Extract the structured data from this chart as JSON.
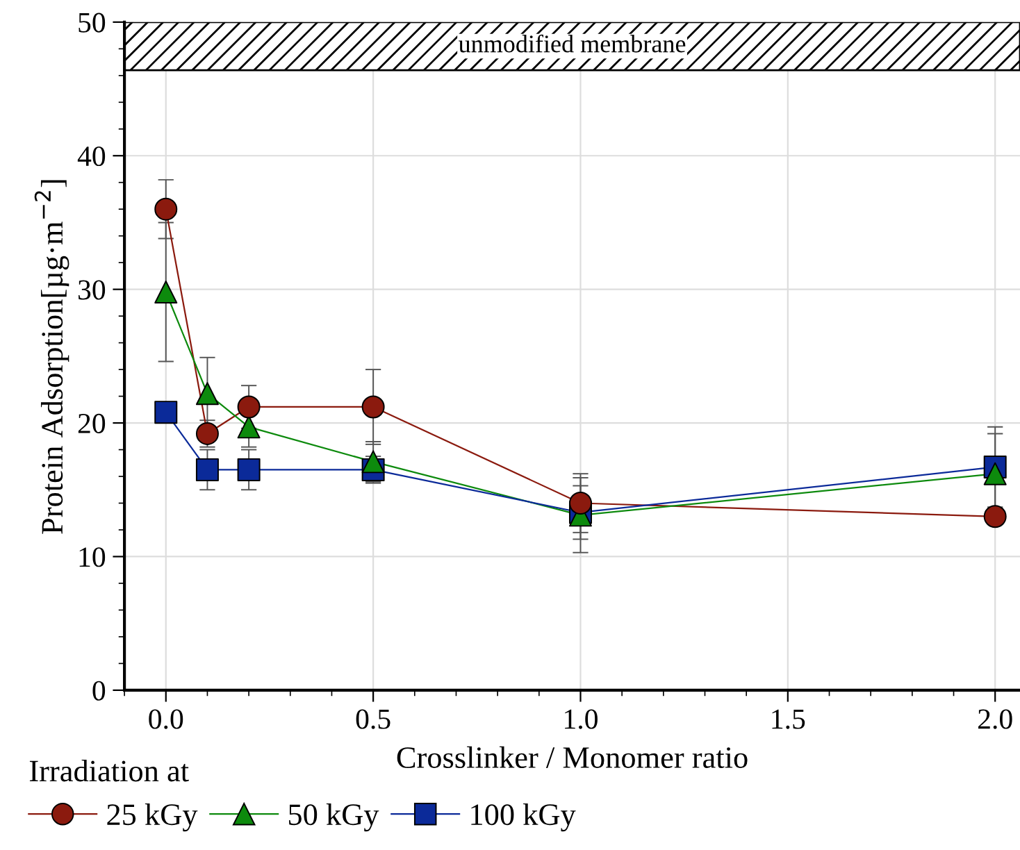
{
  "chart_data": {
    "type": "line",
    "xlabel": "Crosslinker / Monomer ratio",
    "ylabel": "Protein Adsorption[µg·m$^{−2}$]",
    "legend_title": "Irradiation at",
    "legend": "bottom",
    "grid": true,
    "x": [
      0.0,
      0.1,
      0.2,
      0.5,
      1.0,
      2.0
    ],
    "series": [
      {
        "name": "25 kGy",
        "color": "#8b1a0e",
        "marker": "circle",
        "values": [
          36.0,
          19.2,
          21.2,
          21.2,
          14.0,
          13.0
        ],
        "errors": [
          2.2,
          1.0,
          1.6,
          2.8,
          2.2,
          0.6
        ]
      },
      {
        "name": "50 kGy",
        "color": "#0d8a0d",
        "marker": "triangle",
        "values": [
          29.8,
          22.2,
          19.7,
          17.1,
          13.1,
          16.2
        ],
        "errors": [
          5.2,
          2.7,
          1.5,
          1.5,
          2.8,
          3.0
        ]
      },
      {
        "name": "100 kGy",
        "color": "#0b2a99",
        "marker": "square",
        "values": [
          20.8,
          16.5,
          16.5,
          16.5,
          13.3,
          16.7
        ],
        "errors": [
          null,
          1.5,
          1.5,
          1.0,
          2.0,
          3.0
        ]
      }
    ],
    "bands": [
      {
        "axis": "y",
        "from": 46.4,
        "to": 50,
        "label": "unmodified membrane"
      }
    ],
    "xlim": [
      -0.1,
      2.06
    ],
    "ylim": [
      0,
      50
    ],
    "xticks": [
      {
        "value": 0.0,
        "label": "0.0"
      },
      {
        "value": 0.5,
        "label": "0.5"
      },
      {
        "value": 1.0,
        "label": "1.0"
      },
      {
        "value": 1.5,
        "label": "1.5"
      },
      {
        "value": 2.0,
        "label": "2.0"
      }
    ],
    "yticks": [
      0,
      10,
      20,
      30,
      40,
      50
    ]
  }
}
